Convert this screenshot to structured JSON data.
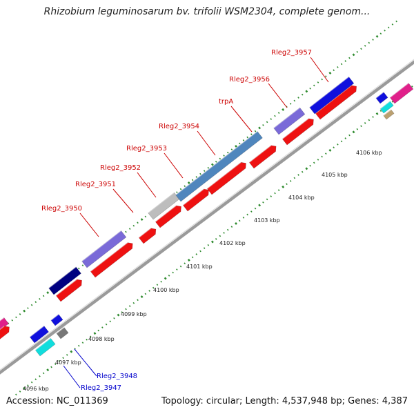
{
  "title": "Rhizobium leguminosarum bv. trifolii WSM2304, complete genom...",
  "footer": {
    "accession": "Accession: NC_011369",
    "summary": "Topology: circular; Length: 4,537,948 bp; Genes: 4,387"
  },
  "ruler": {
    "labels": [
      "4096 kbp",
      "4097 kbp",
      "4098 kbp",
      "4099 kbp",
      "4100 kbp",
      "4101 kbp",
      "4102 kbp",
      "4103 kbp",
      "4104 kbp",
      "4105 kbp",
      "4106 kbp"
    ]
  },
  "gene_labels": [
    {
      "text": "Rleg2_3957",
      "color": "#cc0000"
    },
    {
      "text": "Rleg2_3956",
      "color": "#cc0000"
    },
    {
      "text": "trpA",
      "color": "#cc0000"
    },
    {
      "text": "Rleg2_3954",
      "color": "#cc0000"
    },
    {
      "text": "Rleg2_3953",
      "color": "#cc0000"
    },
    {
      "text": "Rleg2_3952",
      "color": "#cc0000"
    },
    {
      "text": "Rleg2_3951",
      "color": "#cc0000"
    },
    {
      "text": "Rleg2_3950",
      "color": "#cc0000"
    },
    {
      "text": "Rleg2_3948",
      "color": "#0000cc"
    },
    {
      "text": "Rleg2_3947",
      "color": "#0000cc"
    }
  ],
  "colors": {
    "backbone": "#9a9a9a",
    "cds": "#ee1111",
    "dotted_track": "#2e8b2e"
  }
}
